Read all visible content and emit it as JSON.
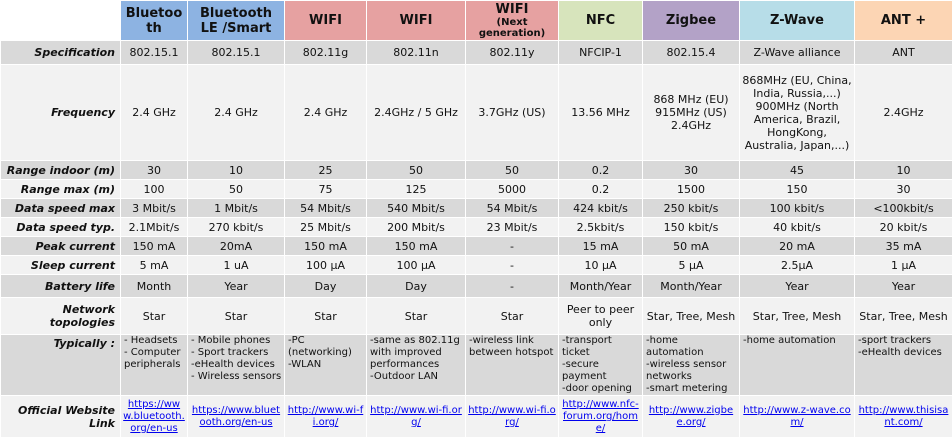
{
  "columns": [
    {
      "label": "Bluetooth",
      "sub": "",
      "color": "#8db3e2"
    },
    {
      "label": "Bluetooth LE /Smart",
      "sub": "",
      "color": "#8db3e2"
    },
    {
      "label": "WIFI",
      "sub": "",
      "color": "#e6a1a1"
    },
    {
      "label": "WIFI",
      "sub": "",
      "color": "#e6a1a1"
    },
    {
      "label": "WIFI",
      "sub": "(Next generation)",
      "color": "#e6a1a1"
    },
    {
      "label": "NFC",
      "sub": "",
      "color": "#d7e4bc"
    },
    {
      "label": "Zigbee",
      "sub": "",
      "color": "#b3a2c7"
    },
    {
      "label": "Z-Wave",
      "sub": "",
      "color": "#b7dde8"
    },
    {
      "label": "ANT +",
      "sub": "",
      "color": "#fcd5b4"
    }
  ],
  "rows": [
    {
      "key": "specification",
      "label": "Specification",
      "style": "odd",
      "h": 24,
      "align": "center",
      "cells": [
        "802.15.1",
        "802.15.1",
        "802.11g",
        "802.11n",
        "802.11y",
        "NFCIP-1",
        "802.15.4",
        "Z-Wave alliance",
        "ANT"
      ]
    },
    {
      "key": "frequency",
      "label": "Frequency",
      "style": "even",
      "h": 96,
      "align": "center",
      "cells": [
        "2.4 GHz",
        "2.4 GHz",
        "2.4 GHz",
        "2.4GHz / 5 GHz",
        "3.7GHz (US)",
        "13.56 MHz",
        "868 MHz (EU)\n915MHz (US)\n2.4GHz",
        "868MHz (EU, China, India, Russia,...)\n900MHz (North America, Brazil, HongKong, Australia, Japan,...)",
        "2.4GHz"
      ]
    },
    {
      "key": "range_indoor",
      "label": "Range indoor (m)",
      "style": "odd",
      "h": 19,
      "align": "center",
      "cells": [
        "30",
        "10",
        "25",
        "50",
        "50",
        "0.2",
        "30",
        "45",
        "10"
      ]
    },
    {
      "key": "range_max",
      "label": "Range max (m)",
      "style": "even",
      "h": 19,
      "align": "center",
      "cells": [
        "100",
        "50",
        "75",
        "125",
        "5000",
        "0.2",
        "1500",
        "150",
        "30"
      ]
    },
    {
      "key": "data_speed_max",
      "label": "Data speed max",
      "style": "odd",
      "h": 19,
      "align": "center",
      "cells": [
        "3 Mbit/s",
        "1 Mbit/s",
        "54 Mbit/s",
        "540 Mbit/s",
        "54 Mbit/s",
        "424 kbit/s",
        "250 kbit/s",
        "100 kbit/s",
        "<100kbit/s"
      ]
    },
    {
      "key": "data_speed_typ",
      "label": "Data speed typ.",
      "style": "even",
      "h": 19,
      "align": "center",
      "cells": [
        "2.1Mbit/s",
        "270 kbit/s",
        "25 Mbit/s",
        "200 Mbit/s",
        "23 Mbit/s",
        "2.5kbit/s",
        "150 kbit/s",
        "40 kbit/s",
        "20 kbit/s"
      ]
    },
    {
      "key": "peak_current",
      "label": "Peak current",
      "style": "odd",
      "h": 19,
      "align": "center",
      "cells": [
        "150 mA",
        "20mA",
        "150 mA",
        "150 mA",
        "-",
        "15 mA",
        "50 mA",
        "20 mA",
        "35 mA"
      ]
    },
    {
      "key": "sleep_current",
      "label": "Sleep current",
      "style": "even",
      "h": 19,
      "align": "center",
      "cells": [
        "5 mA",
        "1 uA",
        "100 µA",
        "100 µA",
        "-",
        "10 µA",
        "5 µA",
        "2.5µA",
        "1 µA"
      ]
    },
    {
      "key": "battery_life",
      "label": "Battery life",
      "style": "odd",
      "h": 23,
      "align": "center",
      "cells": [
        "Month",
        "Year",
        "Day",
        "Day",
        "-",
        "Month/Year",
        "Month/Year",
        "Year",
        "Year"
      ]
    },
    {
      "key": "network_topologies",
      "label": "Network topologies",
      "style": "even",
      "h": 37,
      "align": "center",
      "cells": [
        "Star",
        "Star",
        "Star",
        "Star",
        "Star",
        "Peer to peer only",
        "Star, Tree, Mesh",
        "Star, Tree, Mesh",
        "Star, Tree, Mesh"
      ]
    },
    {
      "key": "typically",
      "label": "Typically :",
      "style": "odd",
      "h": 60,
      "align": "left",
      "cells": [
        "- Headsets\n- Computer peripherals",
        "- Mobile phones\n- Sport trackers\n-eHealth devices\n- Wireless sensors",
        "-PC (networking)\n-WLAN",
        "-same as 802.11g with improved performances\n-Outdoor LAN",
        "-wireless link between hotspot",
        "-transport ticket\n-secure payment\n-door opening",
        "-home automation\n-wireless sensor networks\n-smart metering",
        "-home automation",
        "-sport trackers\n-eHealth devices"
      ]
    }
  ],
  "link_row": {
    "label": "Official Website Link",
    "links": [
      "https://www.bluetooth.org/en-us",
      "https://www.bluetooth.org/en-us",
      "http://www.wi-fi.org/",
      "http://www.wi-fi.org/",
      "http://www.wi-fi.org/",
      "http://www.nfc-forum.org/home/",
      "http://www.zigbee.org/",
      "http://www.z-wave.com/",
      "http://www.thisisant.com/"
    ]
  }
}
